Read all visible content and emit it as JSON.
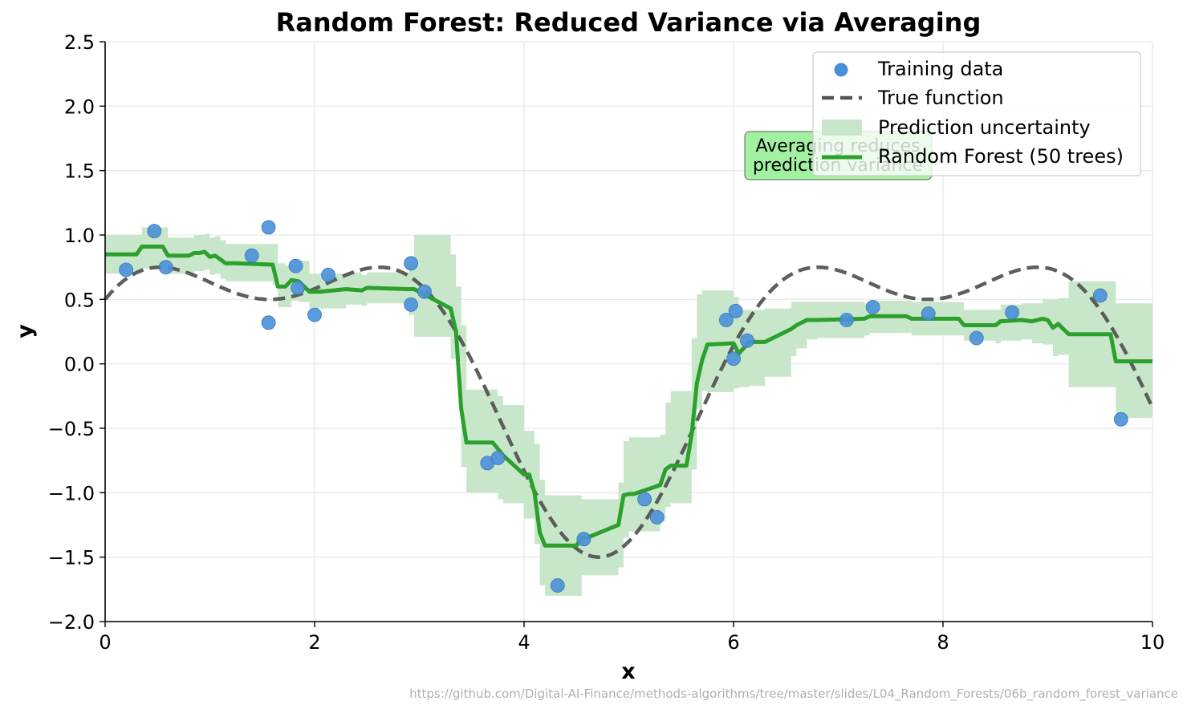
{
  "chart_data": {
    "type": "line",
    "title": "Random Forest: Reduced Variance via Averaging",
    "xlabel": "x",
    "ylabel": "y",
    "xlim": [
      0,
      10
    ],
    "ylim": [
      -2.0,
      2.5
    ],
    "grid": true,
    "legend_position": "top-right",
    "x_ticks": [
      0,
      2,
      4,
      6,
      8,
      10
    ],
    "x_tick_labels": [
      "0",
      "2",
      "4",
      "6",
      "8",
      "10"
    ],
    "y_ticks": [
      -2.0,
      -1.5,
      -1.0,
      -0.5,
      0.0,
      0.5,
      1.0,
      1.5,
      2.0,
      2.5
    ],
    "y_tick_labels": [
      "−2.0",
      "−1.5",
      "−1.0",
      "−0.5",
      "0.0",
      "0.5",
      "1.0",
      "1.5",
      "2.0",
      "2.5"
    ],
    "legend": [
      "Training data",
      "True function",
      "Prediction uncertainty",
      "Random Forest (50 trees)"
    ],
    "colors": {
      "training_data": "#4a90d9",
      "true_function": "#555555",
      "uncertainty": "#c8e6c9",
      "forest": "#2ca02c",
      "annotation_bg": "#90ee90"
    },
    "annotation": {
      "text_lines": [
        "Averaging reduces",
        "prediction variance"
      ],
      "x": 6.1,
      "y": 1.7
    },
    "training_data": {
      "x": [
        0.2,
        0.47,
        0.58,
        1.4,
        1.56,
        1.56,
        1.82,
        1.84,
        2.0,
        2.13,
        2.92,
        2.92,
        3.05,
        3.65,
        3.75,
        4.32,
        4.57,
        5.15,
        5.27,
        5.93,
        6.0,
        6.02,
        6.13,
        7.08,
        7.33,
        7.86,
        8.32,
        8.66,
        9.5,
        9.7
      ],
      "y": [
        0.73,
        1.03,
        0.75,
        0.84,
        1.06,
        0.32,
        0.76,
        0.59,
        0.38,
        0.69,
        0.78,
        0.46,
        0.56,
        -0.77,
        -0.73,
        -1.72,
        -1.36,
        -1.05,
        -1.19,
        0.34,
        0.04,
        0.41,
        0.18,
        0.34,
        0.44,
        0.39,
        0.2,
        0.4,
        0.53,
        -0.43
      ]
    },
    "forest_prediction": {
      "x": [
        0,
        0.3,
        0.35,
        0.55,
        0.6,
        0.8,
        0.85,
        0.9,
        0.95,
        1.0,
        1.05,
        1.1,
        1.15,
        1.2,
        1.25,
        1.6,
        1.65,
        1.72,
        1.78,
        1.85,
        1.95,
        2.05,
        2.3,
        2.45,
        2.5,
        2.9,
        2.95,
        3.3,
        3.35,
        3.4,
        3.45,
        3.7,
        3.75,
        3.8,
        4.0,
        4.05,
        4.1,
        4.15,
        4.2,
        4.5,
        4.55,
        4.6,
        4.9,
        4.95,
        5.0,
        5.05,
        5.3,
        5.35,
        5.4,
        5.45,
        5.5,
        5.55,
        5.6,
        5.65,
        5.7,
        5.75,
        6.0,
        6.05,
        6.15,
        6.2,
        6.3,
        6.55,
        6.6,
        6.7,
        6.8,
        7.25,
        7.3,
        7.65,
        7.7,
        8.15,
        8.2,
        8.5,
        8.55,
        8.75,
        8.85,
        8.95,
        9.0,
        9.05,
        9.1,
        9.2,
        9.6,
        9.65,
        10.0
      ],
      "y": [
        0.85,
        0.85,
        0.91,
        0.91,
        0.84,
        0.84,
        0.86,
        0.86,
        0.87,
        0.83,
        0.84,
        0.81,
        0.78,
        0.78,
        0.78,
        0.77,
        0.6,
        0.6,
        0.65,
        0.64,
        0.56,
        0.56,
        0.58,
        0.57,
        0.59,
        0.58,
        0.58,
        0.43,
        0.25,
        -0.35,
        -0.61,
        -0.61,
        -0.66,
        -0.71,
        -0.86,
        -0.86,
        -1.0,
        -1.31,
        -1.41,
        -1.41,
        -1.35,
        -1.35,
        -1.25,
        -1.02,
        -1.01,
        -1.01,
        -0.94,
        -0.82,
        -0.79,
        -0.79,
        -0.79,
        -0.79,
        -0.55,
        -0.15,
        0.03,
        0.15,
        0.16,
        0.08,
        0.17,
        0.17,
        0.17,
        0.27,
        0.3,
        0.34,
        0.34,
        0.35,
        0.37,
        0.37,
        0.35,
        0.35,
        0.3,
        0.3,
        0.33,
        0.34,
        0.33,
        0.35,
        0.34,
        0.28,
        0.31,
        0.23,
        0.23,
        0.02,
        0.02
      ]
    },
    "uncertainty_band": {
      "x": [
        0,
        0.3,
        0.35,
        0.55,
        0.6,
        0.8,
        0.85,
        0.9,
        0.95,
        1.0,
        1.05,
        1.1,
        1.15,
        1.2,
        1.25,
        1.6,
        1.65,
        1.72,
        1.78,
        1.85,
        1.95,
        2.05,
        2.3,
        2.45,
        2.5,
        2.9,
        2.95,
        3.3,
        3.35,
        3.4,
        3.45,
        3.7,
        3.75,
        3.8,
        4.0,
        4.05,
        4.1,
        4.15,
        4.2,
        4.5,
        4.55,
        4.6,
        4.9,
        4.95,
        5.0,
        5.05,
        5.3,
        5.35,
        5.4,
        5.45,
        5.5,
        5.55,
        5.6,
        5.65,
        5.7,
        5.75,
        6.0,
        6.05,
        6.15,
        6.2,
        6.3,
        6.55,
        6.6,
        6.7,
        6.8,
        7.25,
        7.3,
        7.65,
        7.7,
        8.15,
        8.2,
        8.5,
        8.55,
        8.75,
        8.85,
        8.95,
        9.0,
        9.05,
        9.1,
        9.2,
        9.6,
        9.65,
        10.0
      ],
      "lower": [
        0.7,
        0.7,
        0.74,
        0.74,
        0.7,
        0.7,
        0.72,
        0.72,
        0.73,
        0.69,
        0.7,
        0.66,
        0.64,
        0.64,
        0.64,
        0.61,
        0.44,
        0.44,
        0.49,
        0.48,
        0.43,
        0.43,
        0.46,
        0.45,
        0.47,
        0.38,
        0.21,
        0.04,
        0.02,
        -0.8,
        -1.0,
        -1.0,
        -1.05,
        -1.08,
        -1.2,
        -1.2,
        -1.4,
        -1.72,
        -1.8,
        -1.8,
        -1.64,
        -1.64,
        -1.58,
        -1.35,
        -1.3,
        -1.3,
        -1.22,
        -1.11,
        -1.08,
        -1.08,
        -1.08,
        -1.08,
        -0.82,
        -0.35,
        -0.21,
        -0.22,
        -0.19,
        -0.18,
        -0.17,
        -0.17,
        -0.1,
        0.06,
        0.12,
        0.19,
        0.2,
        0.22,
        0.24,
        0.24,
        0.22,
        0.22,
        0.18,
        0.16,
        0.18,
        0.19,
        0.16,
        0.15,
        0.15,
        0.06,
        0.07,
        -0.18,
        -0.18,
        -0.42,
        -0.42
      ],
      "upper": [
        1.0,
        1.0,
        1.06,
        1.06,
        0.98,
        0.98,
        1.0,
        1.0,
        1.01,
        0.98,
        0.99,
        0.96,
        0.93,
        0.93,
        0.93,
        0.93,
        0.78,
        0.76,
        0.81,
        0.8,
        0.7,
        0.7,
        0.71,
        0.69,
        0.71,
        0.79,
        1.0,
        0.85,
        0.6,
        0.3,
        -0.2,
        -0.2,
        -0.25,
        -0.32,
        -0.52,
        -0.52,
        -0.62,
        -0.9,
        -1.02,
        -1.02,
        -1.05,
        -1.05,
        -0.92,
        -0.6,
        -0.57,
        -0.57,
        -0.55,
        -0.3,
        -0.21,
        -0.21,
        -0.21,
        -0.21,
        0.2,
        0.54,
        0.57,
        0.57,
        0.52,
        0.42,
        0.42,
        0.42,
        0.43,
        0.48,
        0.48,
        0.48,
        0.48,
        0.47,
        0.49,
        0.49,
        0.48,
        0.48,
        0.42,
        0.42,
        0.46,
        0.47,
        0.47,
        0.5,
        0.5,
        0.5,
        0.51,
        0.64,
        0.64,
        0.47,
        0.47
      ]
    }
  },
  "source_url": "https://github.com/Digital-AI-Finance/methods-algorithms/tree/master/slides/L04_Random_Forests/06b_random_forest_variance"
}
